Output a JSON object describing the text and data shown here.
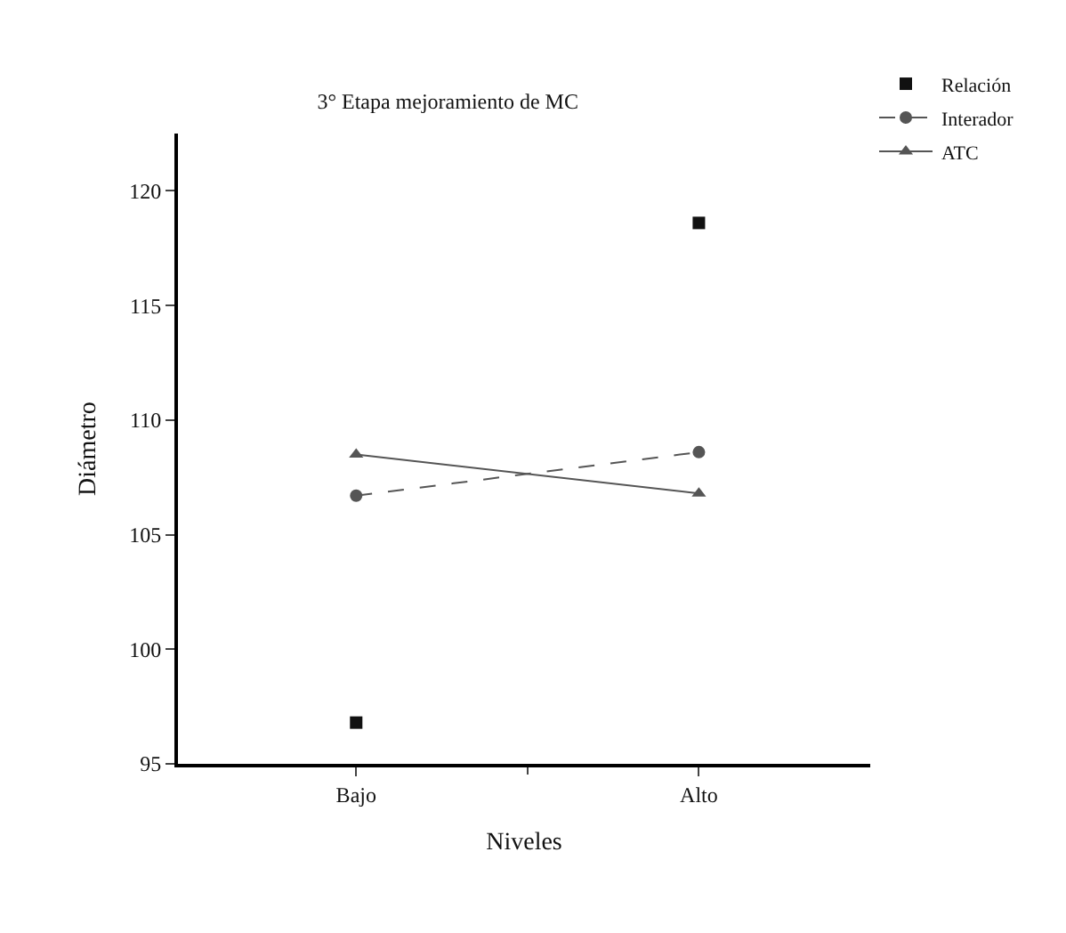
{
  "chart_data": {
    "type": "line",
    "title": "3° Etapa mejoramiento de MC",
    "xlabel": "Niveles",
    "ylabel": "Diámetro",
    "categories": [
      "Bajo",
      "Alto"
    ],
    "series": [
      {
        "name": "Relación",
        "type": "scatter",
        "marker": "square",
        "color": "#111111",
        "values": [
          96.8,
          118.6
        ]
      },
      {
        "name": "Interador",
        "marker": "circle",
        "line_style": "dashed",
        "color": "#555555",
        "values": [
          106.7,
          108.6
        ]
      },
      {
        "name": "ATC",
        "marker": "triangle",
        "line_style": "solid",
        "color": "#555555",
        "values": [
          108.5,
          106.8
        ]
      }
    ],
    "ylim": [
      95,
      122.5
    ],
    "yticks": [
      95,
      100,
      105,
      110,
      115,
      120
    ],
    "grid": false,
    "legend": "top right"
  }
}
